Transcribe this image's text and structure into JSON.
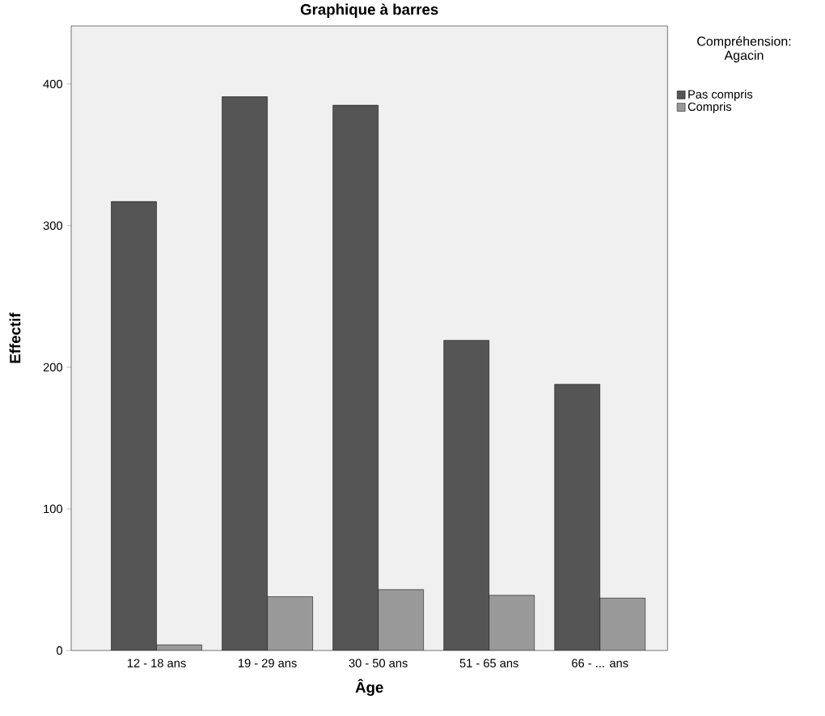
{
  "chart_data": {
    "type": "bar",
    "title": "Graphique à barres",
    "xlabel": "Âge",
    "ylabel": "Effectif",
    "legend_title": "Compréhension: Agacin",
    "categories": [
      "12 - 18 ans",
      "19 - 29 ans",
      "30 - 50 ans",
      "51 - 65 ans",
      "66 - ... ans"
    ],
    "series": [
      {
        "name": "Pas compris",
        "color": "#555555",
        "values": [
          317,
          391,
          385,
          219,
          188
        ]
      },
      {
        "name": "Compris",
        "color": "#999999",
        "values": [
          4,
          38,
          43,
          39,
          37
        ]
      }
    ],
    "ylim": [
      0,
      441
    ],
    "yticks": [
      0,
      100,
      200,
      300,
      400
    ],
    "grid": false,
    "legend": "top right"
  }
}
